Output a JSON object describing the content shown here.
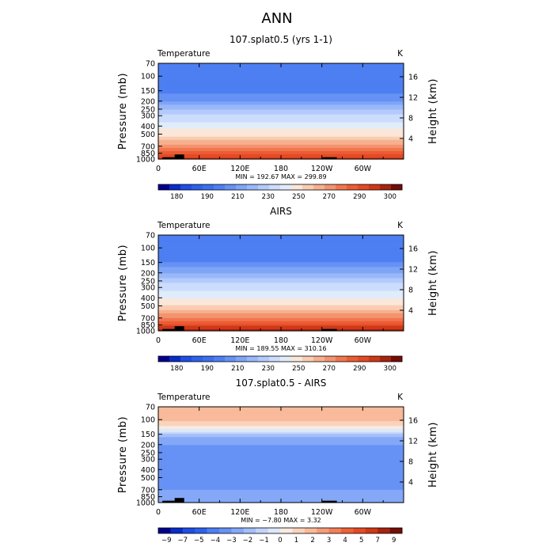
{
  "figure_title": "ANN",
  "colors": {
    "abs_levels": [
      "#00008c",
      "#0a2cc8",
      "#1f4ee3",
      "#2e61eb",
      "#3b6ff0",
      "#4d7ff2",
      "#6692f5",
      "#7fa5f7",
      "#99b8fa",
      "#b3cafc",
      "#ccdcfd",
      "#e1ecfb",
      "#fbe6d8",
      "#f9cdb3",
      "#f7b08d",
      "#f49370",
      "#f1764f",
      "#ec5c33",
      "#e44a26",
      "#cf3816",
      "#a62410",
      "#730d05"
    ],
    "diff_levels": [
      "#00008c",
      "#0a2cc8",
      "#1f4ee3",
      "#2e61eb",
      "#4d7ff2",
      "#6692f5",
      "#84a8f7",
      "#a3bffa",
      "#c2d4fc",
      "#dde7fb",
      "#f6ebe0",
      "#fad3bd",
      "#f8ba9a",
      "#f59c78",
      "#f27f58",
      "#ed6236",
      "#e44a26",
      "#cf3816",
      "#a62410",
      "#730d05"
    ],
    "topography": "#000000"
  },
  "chart_data": [
    {
      "type": "heatmap",
      "title": "107.splat0.5 (yrs 1-1)",
      "variable": "Temperature",
      "units": "K",
      "ylabel": "Pressure (mb)",
      "ylabel_right": "Height (km)",
      "xticks": [
        "0",
        "60E",
        "120E",
        "180",
        "120W",
        "60W"
      ],
      "xlim": [
        0,
        360
      ],
      "yticks": [
        70,
        100,
        150,
        200,
        250,
        300,
        400,
        500,
        700,
        850,
        1000
      ],
      "ylim": [
        70,
        1000
      ],
      "right_ticks": [
        16,
        12,
        8,
        4
      ],
      "stats": "MIN = 192.67   MAX = 299.89",
      "min": 192.67,
      "max": 299.89,
      "colorbar_ticks": [
        "180",
        "190",
        "210",
        "230",
        "250",
        "270",
        "290",
        "300"
      ],
      "profile": {
        "pressure": [
          70,
          100,
          150,
          200,
          250,
          300,
          400,
          500,
          700,
          850,
          1000
        ],
        "value": [
          205,
          203,
          208,
          215,
          225,
          232,
          245,
          257,
          272,
          283,
          292
        ]
      }
    },
    {
      "type": "heatmap",
      "title": "AIRS",
      "variable": "Temperature",
      "units": "K",
      "ylabel": "Pressure (mb)",
      "ylabel_right": "Height (km)",
      "xticks": [
        "0",
        "60E",
        "120E",
        "180",
        "120W",
        "60W"
      ],
      "xlim": [
        0,
        360
      ],
      "yticks": [
        70,
        100,
        150,
        200,
        250,
        300,
        400,
        500,
        700,
        850,
        1000
      ],
      "ylim": [
        70,
        1000
      ],
      "right_ticks": [
        16,
        12,
        8,
        4
      ],
      "stats": "MIN = 189.55   MAX = 310.16",
      "min": 189.55,
      "max": 310.16,
      "colorbar_ticks": [
        "180",
        "190",
        "210",
        "230",
        "250",
        "270",
        "290",
        "300"
      ],
      "profile": {
        "pressure": [
          70,
          100,
          150,
          200,
          250,
          300,
          400,
          500,
          700,
          850,
          1000
        ],
        "value": [
          205,
          200,
          210,
          220,
          228,
          236,
          248,
          260,
          275,
          287,
          297
        ]
      }
    },
    {
      "type": "heatmap",
      "title": "107.splat0.5 - AIRS",
      "variable": "Temperature",
      "units": "K",
      "ylabel": "Pressure (mb)",
      "ylabel_right": "Height (km)",
      "xticks": [
        "0",
        "60E",
        "120E",
        "180",
        "120W",
        "60W"
      ],
      "xlim": [
        0,
        360
      ],
      "yticks": [
        70,
        100,
        150,
        200,
        250,
        300,
        400,
        500,
        700,
        850,
        1000
      ],
      "ylim": [
        70,
        1000
      ],
      "right_ticks": [
        16,
        12,
        8,
        4
      ],
      "stats": "MIN = −7.80   MAX =     3.32",
      "min": -7.8,
      "max": 3.32,
      "colorbar_ticks": [
        "−9",
        "−7",
        "−5",
        "−4",
        "−3",
        "−2",
        "−1",
        "0",
        "1",
        "2",
        "3",
        "4",
        "5",
        "7",
        "9"
      ],
      "profile": {
        "pressure": [
          70,
          100,
          150,
          200,
          250,
          300,
          400,
          500,
          700,
          850,
          1000
        ],
        "value": [
          2.0,
          2.3,
          -0.5,
          -2.0,
          -2.3,
          -2.4,
          -2.6,
          -2.6,
          -2.0,
          -1.0,
          -2.0
        ]
      }
    }
  ]
}
